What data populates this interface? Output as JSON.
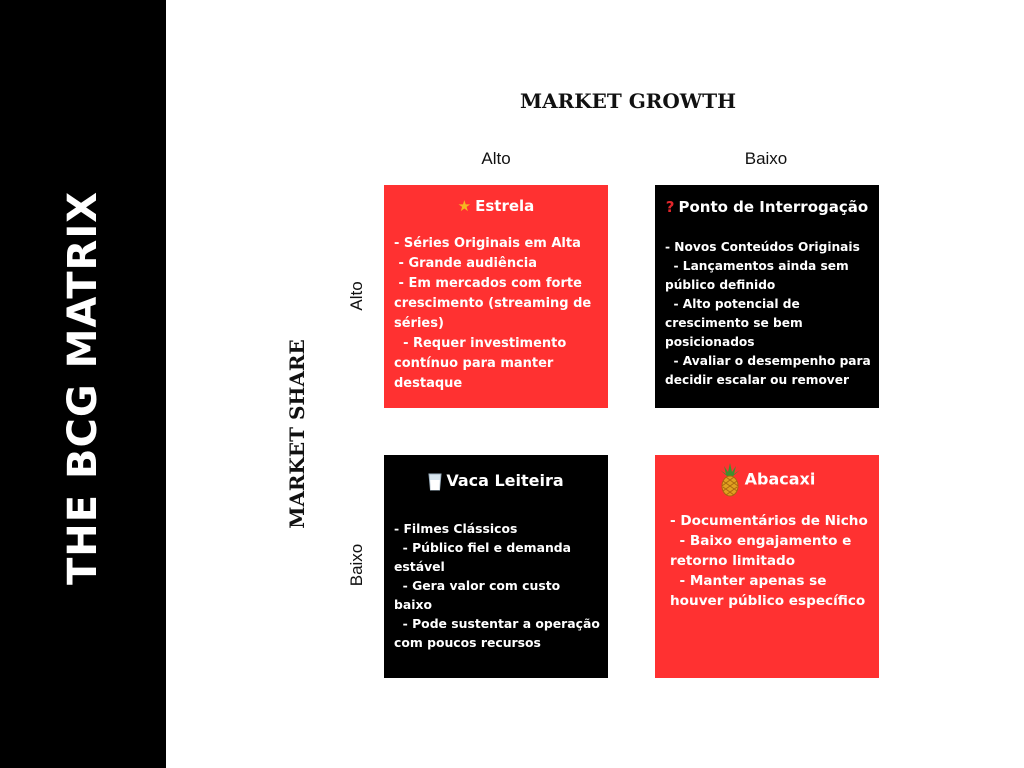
{
  "sidebar": {
    "title": "THE BCG MATRIX"
  },
  "axes": {
    "x_title": "MARKET GROWTH",
    "y_title": "MARKET SHARE",
    "x_ticks": [
      "Alto",
      "Baixo"
    ],
    "y_ticks": [
      "Alto",
      "Baixo"
    ]
  },
  "colors": {
    "red": "#ff3131",
    "black": "#000000",
    "sidebar": "#000000"
  },
  "quadrants": [
    {
      "icon": "star-icon",
      "title": "Estrela",
      "body": "- Séries Originais em Alta\n - Grande audiência\n - Em mercados com forte crescimento (streaming de séries)\n  - Requer investimento contínuo para manter destaque"
    },
    {
      "icon": "question-icon",
      "title": "Ponto de Interrogação",
      "body": "- Novos Conteúdos Originais\n  - Lançamentos ainda sem público definido\n  - Alto potencial de crescimento se bem posicionados\n  - Avaliar o desempenho para decidir escalar ou remover"
    },
    {
      "icon": "milk-icon",
      "title": "Vaca Leiteira",
      "body": "- Filmes Clássicos\n  - Público fiel e demanda estável\n  - Gera valor com custo baixo\n  - Pode sustentar a operação com poucos recursos"
    },
    {
      "icon": "pineapple-icon",
      "title": "Abacaxi",
      "body": "- Documentários de Nicho\n  - Baixo engajamento e retorno limitado\n  - Manter apenas se houver público específico"
    }
  ]
}
